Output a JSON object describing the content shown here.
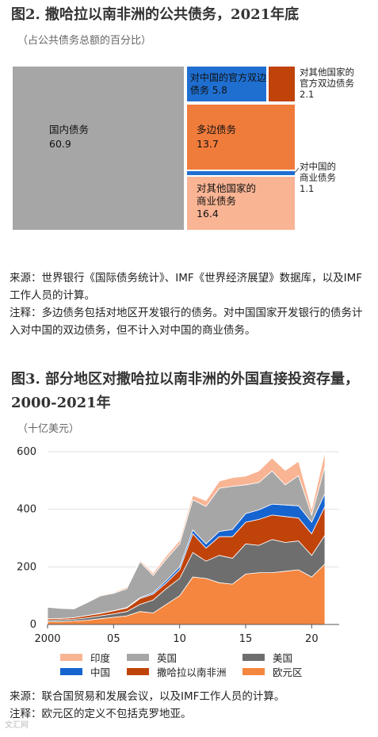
{
  "fig2": {
    "title": "图2. 撒哈拉以南非洲的公共债务，2021年底",
    "subtitle": "（占公共债务总额的百分比）",
    "source": "来源：世界银行《国际债务统计》、IMF《世界经济展望》数据库，以及IMF工作人员的计算。",
    "note": "注释：多边债务包括对地区开发银行的债务。对中国国家开发银行的债务计入对中国的双边债务，但不计入对中国的商业债务。"
  },
  "fig3": {
    "title_line1": "图3. 部分地区对撒哈拉以南非洲的外国直接投资存量，",
    "title_line2": "2000-2021年",
    "subtitle": "（十亿美元）",
    "source": "来源：联合国贸易和发展会议，以及IMF工作人员的计算。",
    "note": "注释：欧元区的定义不包括克罗地亚。"
  },
  "watermark": "文汇网",
  "chart_data": [
    {
      "type": "treemap",
      "colors": {
        "domestic": "#a6a6a6",
        "china_official": "#1f6fd1",
        "other_official": "#c0430a",
        "multilateral": "#f07c3c",
        "china_commercial": "#1f6fd1",
        "other_commercial": "#f9b494"
      },
      "items": [
        {
          "key": "domestic",
          "label": "国内债务",
          "value": "60.9"
        },
        {
          "key": "china_official",
          "label": "对中国的官方双边债务",
          "value": "5.8"
        },
        {
          "key": "other_official",
          "label_line1": "对其他国家的",
          "label_line2": "官方双边债务",
          "value": "2.1"
        },
        {
          "key": "multilateral",
          "label": "多边债务",
          "value": "13.7"
        },
        {
          "key": "china_commercial",
          "label_line1": "对中国的",
          "label_line2": "商业债务",
          "value": "1.1"
        },
        {
          "key": "other_commercial",
          "label_line1": "对其他国家的",
          "label_line2": "商业债务",
          "value": "16.4"
        }
      ]
    },
    {
      "type": "area",
      "stacked": true,
      "x": [
        2000,
        2001,
        2002,
        2003,
        2004,
        2005,
        2006,
        2007,
        2008,
        2009,
        2010,
        2011,
        2012,
        2013,
        2014,
        2015,
        2016,
        2017,
        2018,
        2019,
        2020,
        2021
      ],
      "xticks": [
        2000,
        2005,
        2010,
        2015,
        2020
      ],
      "xtick_labels": [
        "2000",
        "05",
        "10",
        "15",
        "20"
      ],
      "ylim": [
        0,
        600
      ],
      "yticks": [
        0,
        200,
        400,
        600
      ],
      "series": [
        {
          "name": "欧元区",
          "color": "#f4863f",
          "values": [
            10,
            10,
            12,
            15,
            20,
            25,
            30,
            45,
            40,
            70,
            100,
            165,
            160,
            145,
            140,
            175,
            180,
            180,
            185,
            190,
            165,
            210
          ]
        },
        {
          "name": "美国",
          "color": "#6e6e6e",
          "values": [
            5,
            6,
            6,
            8,
            10,
            12,
            15,
            25,
            45,
            55,
            60,
            85,
            60,
            95,
            90,
            105,
            95,
            115,
            100,
            100,
            75,
            100
          ]
        },
        {
          "name": "撒哈拉以南非洲",
          "color": "#c0430a",
          "values": [
            5,
            5,
            6,
            8,
            8,
            10,
            12,
            20,
            20,
            20,
            30,
            65,
            45,
            65,
            75,
            75,
            90,
            85,
            90,
            80,
            75,
            100
          ]
        },
        {
          "name": "中国",
          "color": "#1664d0",
          "values": [
            0,
            0,
            0,
            0,
            1,
            1,
            2,
            3,
            5,
            8,
            10,
            13,
            15,
            18,
            25,
            30,
            33,
            38,
            40,
            42,
            40,
            45
          ]
        },
        {
          "name": "英国",
          "color": "#a6a6a6",
          "values": [
            40,
            35,
            30,
            45,
            60,
            60,
            65,
            125,
            60,
            75,
            80,
            105,
            130,
            150,
            150,
            100,
            95,
            115,
            70,
            105,
            25,
            95
          ]
        },
        {
          "name": "印度",
          "color": "#f9b494",
          "values": [
            2,
            2,
            2,
            2,
            3,
            3,
            5,
            5,
            8,
            10,
            12,
            15,
            20,
            25,
            30,
            30,
            40,
            45,
            50,
            50,
            20,
            50
          ]
        }
      ],
      "legend_order": [
        "印度",
        "英国",
        "美国",
        "中国",
        "撒哈拉以南非洲",
        "欧元区"
      ]
    }
  ]
}
